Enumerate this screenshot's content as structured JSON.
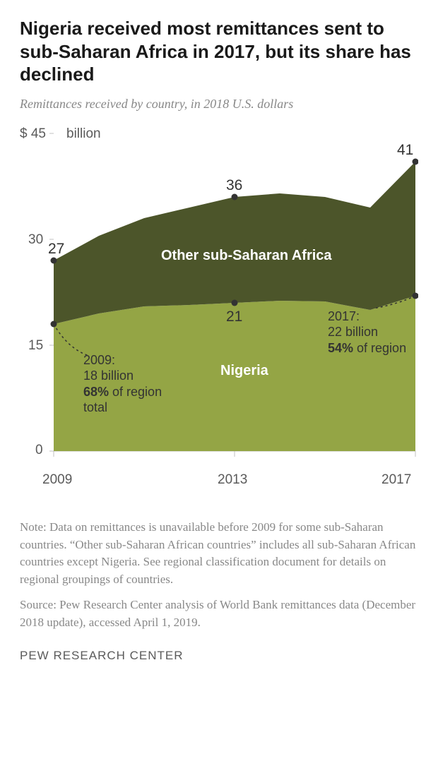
{
  "title": "Nigeria received most remittances sent to sub-Saharan Africa in 2017, but its share has declined",
  "subtitle": "Remittances received by country, in 2018 U.S. dollars",
  "chart": {
    "type": "area",
    "years": [
      2009,
      2010,
      2011,
      2012,
      2013,
      2014,
      2015,
      2016,
      2017
    ],
    "nigeria_values": [
      18,
      19.5,
      20.5,
      20.7,
      21,
      21.3,
      21.2,
      20,
      22
    ],
    "total_values": [
      27,
      30.5,
      33,
      34.5,
      36,
      36.5,
      36,
      34.5,
      41
    ],
    "nigeria_color": "#94a545",
    "other_color": "#4c552a",
    "background_color": "#ffffff",
    "ylim": [
      0,
      45
    ],
    "yticks": [
      0,
      15,
      30,
      45
    ],
    "ytick_labels": [
      "0",
      "15",
      "30",
      "$ 45"
    ],
    "xticks": [
      2009,
      2013,
      2017
    ],
    "xtick_labels": [
      "2009",
      "2013",
      "2017"
    ],
    "unit_label": "billion",
    "point_labels": {
      "total_2009": "27",
      "total_2013": "36",
      "total_2017": "41",
      "nigeria_2013": "21"
    },
    "series_labels": {
      "other": "Other sub-Saharan Africa",
      "nigeria": "Nigeria"
    },
    "callouts": {
      "left_year": "2009:",
      "left_val": "18 billion",
      "left_pct": "68%",
      "left_rest": " of region total",
      "right_year": "2017:",
      "right_val": "22 billion",
      "right_pct": "54%",
      "right_rest": " of region"
    },
    "marker_color": "#333333",
    "axis_color": "#c0c0c0",
    "axis_text_color": "#5a5a5a",
    "title_fontsize": 26,
    "subtitle_fontsize": 18,
    "axis_fontsize": 19,
    "value_fontsize": 21,
    "series_fontsize": 20,
    "callout_fontsize": 18
  },
  "note": "Note: Data on remittances is unavailable before 2009 for some sub-Saharan countries. “Other sub-Saharan African countries” includes all sub-Saharan African countries except Nigeria. See regional classification document for details on regional groupings of countries.",
  "source": "Source: Pew Research Center analysis of World Bank remittances data (December 2018 update), accessed April 1, 2019.",
  "attribution": "PEW RESEARCH CENTER"
}
